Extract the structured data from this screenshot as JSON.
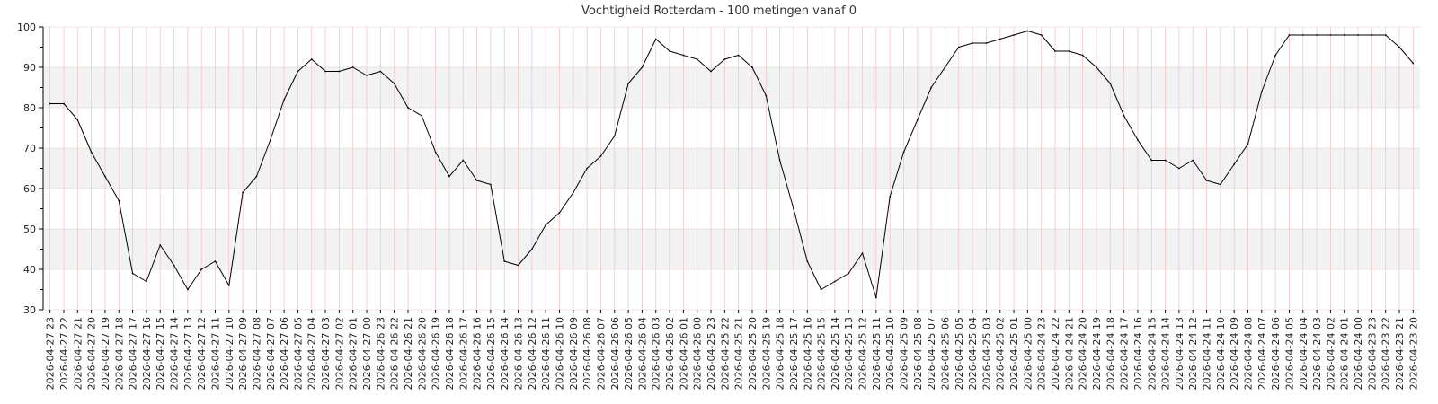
{
  "chart_data": {
    "type": "line",
    "title": "Vochtigheid Rotterdam - 100 metingen vanaf 0",
    "xlabel": "",
    "ylabel": "",
    "ylim": [
      30,
      100
    ],
    "yticks": [
      30,
      40,
      50,
      60,
      70,
      80,
      90,
      100
    ],
    "grid": true,
    "colors": {
      "line": "#000000",
      "band": "#f2f2f2",
      "vgrid": "#f4c6c6",
      "hgrid": "#e4c9c9",
      "axis": "#000000"
    },
    "categories": [
      "2026-04-27 23",
      "2026-04-27 22",
      "2026-04-27 21",
      "2026-04-27 20",
      "2026-04-27 19",
      "2026-04-27 18",
      "2026-04-27 17",
      "2026-04-27 16",
      "2026-04-27 15",
      "2026-04-27 14",
      "2026-04-27 13",
      "2026-04-27 12",
      "2026-04-27 11",
      "2026-04-27 10",
      "2026-04-27 09",
      "2026-04-27 08",
      "2026-04-27 07",
      "2026-04-27 06",
      "2026-04-27 05",
      "2026-04-27 04",
      "2026-04-27 03",
      "2026-04-27 02",
      "2026-04-27 01",
      "2026-04-27 00",
      "2026-04-26 23",
      "2026-04-26 22",
      "2026-04-26 21",
      "2026-04-26 20",
      "2026-04-26 19",
      "2026-04-26 18",
      "2026-04-26 17",
      "2026-04-26 16",
      "2026-04-26 15",
      "2026-04-26 14",
      "2026-04-26 13",
      "2026-04-26 12",
      "2026-04-26 11",
      "2026-04-26 10",
      "2026-04-26 09",
      "2026-04-26 08",
      "2026-04-26 07",
      "2026-04-26 06",
      "2026-04-26 05",
      "2026-04-26 04",
      "2026-04-26 03",
      "2026-04-26 02",
      "2026-04-26 01",
      "2026-04-26 00",
      "2026-04-25 23",
      "2026-04-25 22",
      "2026-04-25 21",
      "2026-04-25 20",
      "2026-04-25 19",
      "2026-04-25 18",
      "2026-04-25 17",
      "2026-04-25 16",
      "2026-04-25 15",
      "2026-04-25 14",
      "2026-04-25 13",
      "2026-04-25 12",
      "2026-04-25 11",
      "2026-04-25 10",
      "2026-04-25 09",
      "2026-04-25 08",
      "2026-04-25 07",
      "2026-04-25 06",
      "2026-04-25 05",
      "2026-04-25 04",
      "2026-04-25 03",
      "2026-04-25 02",
      "2026-04-25 01",
      "2026-04-25 00",
      "2026-04-24 23",
      "2026-04-24 22",
      "2026-04-24 21",
      "2026-04-24 20",
      "2026-04-24 19",
      "2026-04-24 18",
      "2026-04-24 17",
      "2026-04-24 16",
      "2026-04-24 15",
      "2026-04-24 14",
      "2026-04-24 13",
      "2026-04-24 12",
      "2026-04-24 11",
      "2026-04-24 10",
      "2026-04-24 09",
      "2026-04-24 08",
      "2026-04-24 07",
      "2026-04-24 06",
      "2026-04-24 05",
      "2026-04-24 04",
      "2026-04-24 03",
      "2026-04-24 02",
      "2026-04-24 01",
      "2026-04-24 00",
      "2026-04-23 23",
      "2026-04-23 22",
      "2026-04-23 21",
      "2026-04-23 20"
    ],
    "series": [
      {
        "values": [
          81,
          81,
          77,
          69,
          63,
          57,
          39,
          37,
          46,
          41,
          35,
          40,
          42,
          36,
          59,
          63,
          72,
          82,
          89,
          92,
          89,
          89,
          90,
          88,
          89,
          86,
          80,
          78,
          69,
          63,
          67,
          62,
          61,
          42,
          41,
          45,
          51,
          54,
          59,
          65,
          68,
          73,
          86,
          90,
          97,
          94,
          93,
          92,
          89,
          92,
          93,
          90,
          83,
          67,
          55,
          42,
          35,
          37,
          39,
          44,
          33,
          58,
          69,
          77,
          85,
          90,
          95,
          96,
          96,
          97,
          98,
          99,
          98,
          94,
          94,
          93,
          90,
          86,
          78,
          72,
          67,
          67,
          65,
          67,
          62,
          61,
          66,
          71,
          84,
          93,
          98,
          98,
          98,
          98,
          98,
          98,
          98,
          98,
          95,
          91
        ]
      }
    ]
  }
}
